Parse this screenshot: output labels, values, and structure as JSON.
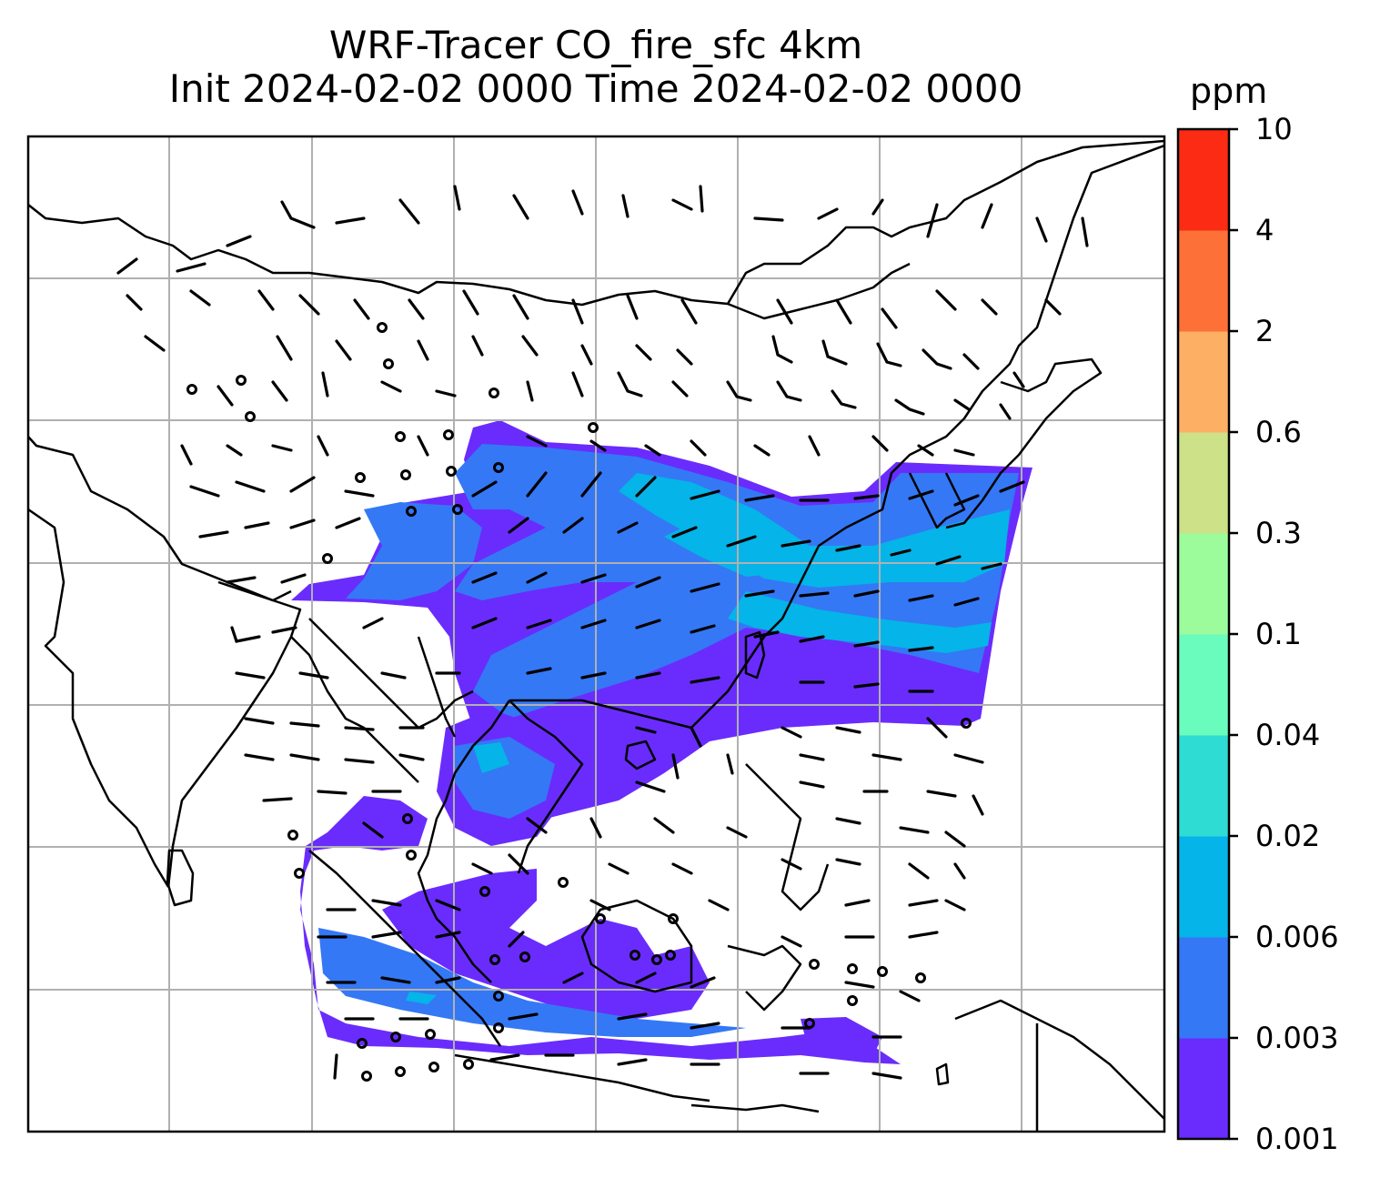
{
  "title": {
    "line1": "WRF-Tracer CO_fire_sfc 4km",
    "line2": "Init 2024-02-02 0000 Time 2024-02-02 0000"
  },
  "colorbar": {
    "unit": "ppm",
    "levels": [
      "0.001",
      "0.003",
      "0.006",
      "0.02",
      "0.04",
      "0.1",
      "0.3",
      "0.6",
      "2",
      "4",
      "10"
    ],
    "colors": [
      "#6a2cfc",
      "#3478f5",
      "#05b4e8",
      "#2fdcd4",
      "#6afcbc",
      "#9cfc9c",
      "#cce188",
      "#fdb064",
      "#fd7038",
      "#fb2b14"
    ]
  },
  "map": {
    "gridlines": true,
    "features": [
      "coastlines",
      "country-borders",
      "wind-barbs",
      "calm-circles"
    ],
    "colors": {
      "frame": "#000000",
      "grid": "#b0b0b0",
      "coast": "#000000"
    }
  }
}
